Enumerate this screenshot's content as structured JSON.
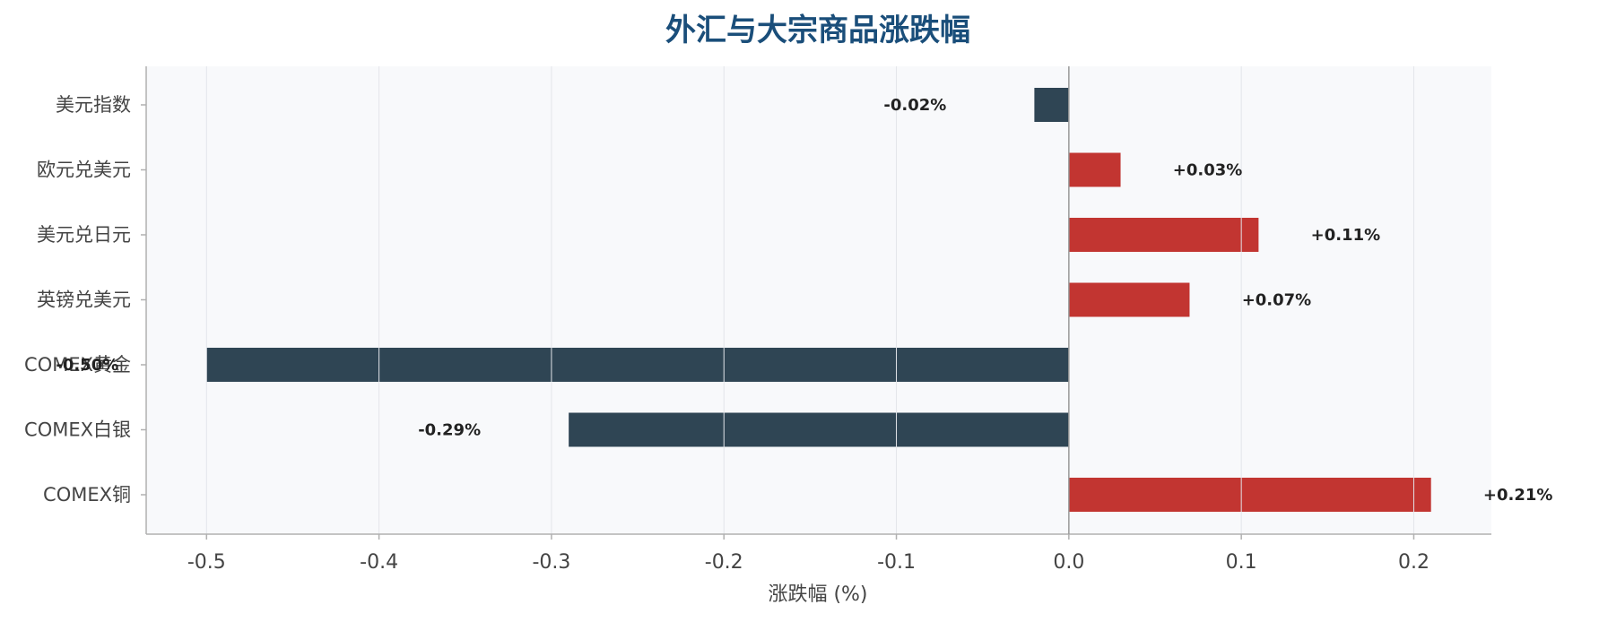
{
  "chart_data": {
    "type": "bar",
    "orientation": "horizontal",
    "title": "外汇与大宗商品涨跌幅",
    "xlabel": "涨跌幅 (%)",
    "ylabel": "",
    "categories": [
      "美元指数",
      "欧元兑美元",
      "美元兑日元",
      "英镑兑美元",
      "COMEX黄金",
      "COMEX白银",
      "COMEX铜"
    ],
    "values": [
      -0.02,
      0.03,
      0.11,
      0.07,
      -0.5,
      -0.29,
      0.21
    ],
    "data_labels": [
      "-0.02%",
      "+0.03%",
      "+0.11%",
      "+0.07%",
      "-0.50%",
      "-0.29%",
      "+0.21%"
    ],
    "xlim": [
      -0.535,
      0.245
    ],
    "xticks": [
      -0.5,
      -0.4,
      -0.3,
      -0.2,
      -0.1,
      0.0,
      0.1,
      0.2
    ],
    "xtick_labels": [
      "-0.5",
      "-0.4",
      "-0.3",
      "-0.2",
      "-0.1",
      "0.0",
      "0.1",
      "0.2"
    ],
    "grid": "vertical",
    "legend": "none",
    "colors": {
      "positive": "#c23531",
      "negative": "#2f4554",
      "title": "#1a4e7a",
      "plot_background": "#f8f9fb",
      "grid": "#e3e5ea",
      "zero_line": "#999999"
    }
  }
}
